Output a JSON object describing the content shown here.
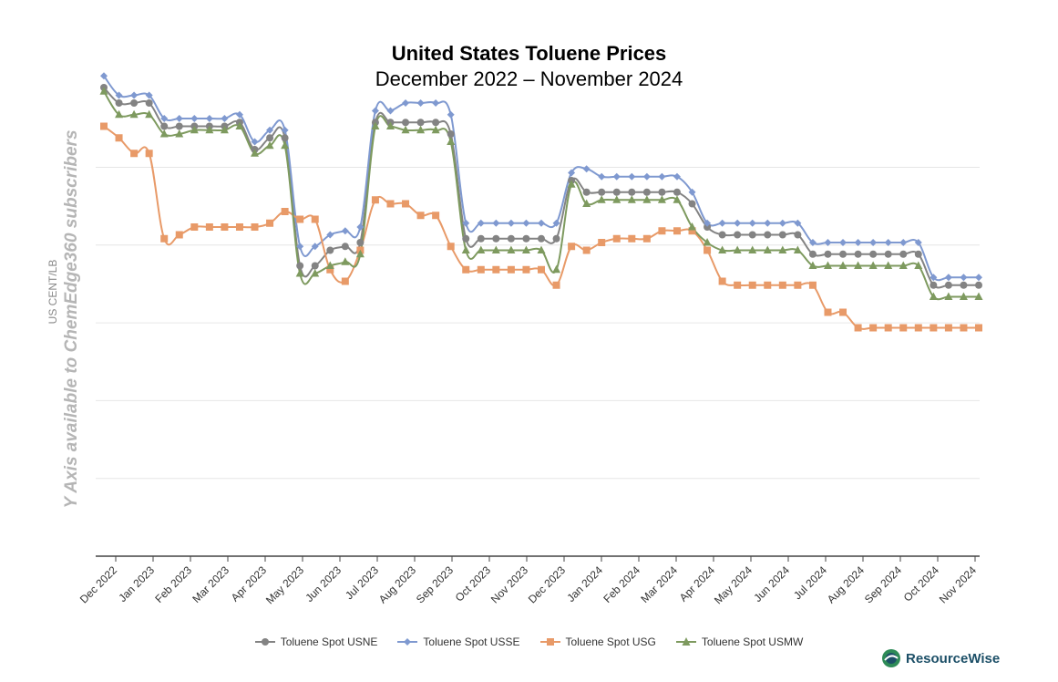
{
  "chart_data": {
    "type": "line",
    "title": "United States Toluene Prices",
    "subtitle": "December 2022 – November 2024",
    "ylabel": "US CENT/LB",
    "y_note": "Y Axis available to ChemEdge360 subscribers",
    "grid": true,
    "legend_position": "bottom",
    "x_tick_labels": [
      "Dec 2022",
      "Jan 2023",
      "Feb 2023",
      "Mar 2023",
      "Apr 2023",
      "May 2023",
      "Jun 2023",
      "Jul 2023",
      "Aug 2023",
      "Sep 2023",
      "Oct 2023",
      "Nov 2023",
      "Dec 2023",
      "Jan 2024",
      "Feb 2024",
      "Mar 2024",
      "Apr 2024",
      "May 2024",
      "Jun 2024",
      "Jul 2024",
      "Aug 2024",
      "Sep 2024",
      "Oct 2024",
      "Nov 2024"
    ],
    "x": [
      0,
      0.4,
      0.8,
      1.2,
      1.6,
      2,
      2.4,
      2.8,
      3.2,
      3.6,
      4,
      4.4,
      4.8,
      5.2,
      5.6,
      6,
      6.4,
      6.8,
      7.2,
      7.6,
      8,
      8.4,
      8.8,
      9.2,
      9.6,
      10,
      10.4,
      10.8,
      11.2,
      11.6,
      12,
      12.4,
      12.8,
      13.2,
      13.6,
      14,
      14.4,
      14.8,
      15.2,
      15.6,
      16,
      16.4,
      16.8,
      17.2,
      17.6,
      18,
      18.4,
      18.8,
      19.2,
      19.6,
      20,
      20.4,
      20.8,
      21.2,
      21.6,
      22,
      22.4,
      22.8,
      23.2
    ],
    "series": [
      {
        "name": "Toluene Spot USNE",
        "color": "#838383",
        "marker": "circle",
        "values": [
          5.4,
          5.2,
          5.2,
          5.2,
          4.9,
          4.9,
          4.9,
          4.9,
          4.9,
          4.95,
          4.6,
          4.75,
          4.75,
          3.1,
          3.1,
          3.3,
          3.35,
          3.4,
          4.95,
          4.95,
          4.95,
          4.95,
          4.95,
          4.8,
          3.45,
          3.45,
          3.45,
          3.45,
          3.45,
          3.45,
          3.45,
          4.2,
          4.05,
          4.05,
          4.05,
          4.05,
          4.05,
          4.05,
          4.05,
          3.9,
          3.6,
          3.5,
          3.5,
          3.5,
          3.5,
          3.5,
          3.5,
          3.25,
          3.25,
          3.25,
          3.25,
          3.25,
          3.25,
          3.25,
          3.25,
          2.85,
          2.85,
          2.85,
          2.85
        ]
      },
      {
        "name": "Toluene Spot USSE",
        "color": "#7f99d0",
        "marker": "diamond",
        "values": [
          5.55,
          5.3,
          5.3,
          5.3,
          5,
          5,
          5,
          5,
          5,
          5.05,
          4.7,
          4.85,
          4.85,
          3.35,
          3.35,
          3.5,
          3.55,
          3.6,
          5.1,
          5.1,
          5.2,
          5.2,
          5.2,
          5.05,
          3.65,
          3.65,
          3.65,
          3.65,
          3.65,
          3.65,
          3.65,
          4.3,
          4.35,
          4.25,
          4.25,
          4.25,
          4.25,
          4.25,
          4.25,
          4.05,
          3.65,
          3.65,
          3.65,
          3.65,
          3.65,
          3.65,
          3.65,
          3.4,
          3.4,
          3.4,
          3.4,
          3.4,
          3.4,
          3.4,
          3.4,
          2.95,
          2.95,
          2.95,
          2.95
        ]
      },
      {
        "name": "Toluene Spot USG",
        "color": "#e89a68",
        "marker": "square",
        "values": [
          4.9,
          4.75,
          4.55,
          4.55,
          3.45,
          3.5,
          3.6,
          3.6,
          3.6,
          3.6,
          3.6,
          3.65,
          3.8,
          3.7,
          3.7,
          3.05,
          2.9,
          3.3,
          3.95,
          3.9,
          3.9,
          3.75,
          3.75,
          3.35,
          3.05,
          3.05,
          3.05,
          3.05,
          3.05,
          3.05,
          2.85,
          3.35,
          3.3,
          3.4,
          3.45,
          3.45,
          3.45,
          3.55,
          3.55,
          3.55,
          3.3,
          2.9,
          2.85,
          2.85,
          2.85,
          2.85,
          2.85,
          2.85,
          2.5,
          2.5,
          2.3,
          2.3,
          2.3,
          2.3,
          2.3,
          2.3,
          2.3,
          2.3,
          2.3
        ]
      },
      {
        "name": "Toluene Spot USMW",
        "color": "#7e9a5f",
        "marker": "triangle",
        "values": [
          5.35,
          5.05,
          5.05,
          5.05,
          4.8,
          4.8,
          4.85,
          4.85,
          4.85,
          4.9,
          4.55,
          4.65,
          4.65,
          3,
          3,
          3.1,
          3.15,
          3.25,
          4.9,
          4.9,
          4.85,
          4.85,
          4.85,
          4.7,
          3.3,
          3.3,
          3.3,
          3.3,
          3.3,
          3.3,
          3.05,
          4.15,
          3.9,
          3.95,
          3.95,
          3.95,
          3.95,
          3.95,
          3.95,
          3.6,
          3.4,
          3.3,
          3.3,
          3.3,
          3.3,
          3.3,
          3.3,
          3.1,
          3.1,
          3.1,
          3.1,
          3.1,
          3.1,
          3.1,
          3.1,
          2.7,
          2.7,
          2.7,
          2.7
        ]
      }
    ]
  },
  "brand": {
    "name": "ResourceWise"
  }
}
